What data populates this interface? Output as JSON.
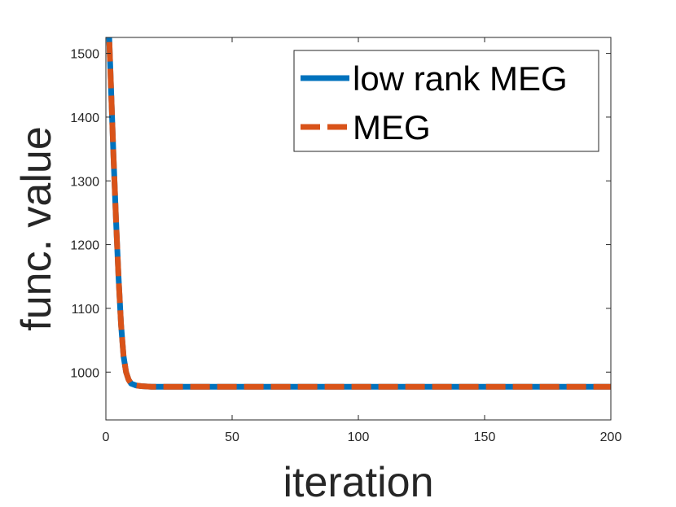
{
  "chart_data": {
    "type": "line",
    "title": "",
    "xlabel": "iteration",
    "ylabel": "func. value",
    "xlim": [
      0,
      200
    ],
    "ylim": [
      925,
      1525
    ],
    "xticks": [
      0,
      50,
      100,
      150,
      200
    ],
    "yticks": [
      1000,
      1100,
      1200,
      1300,
      1400,
      1500
    ],
    "grid": false,
    "legend_position": "top-right",
    "series": [
      {
        "name": "low rank MEG",
        "color": "#0072BD",
        "line_style": "solid",
        "x": [
          1,
          2,
          3,
          4,
          5,
          6,
          7,
          8,
          9,
          10,
          12,
          14,
          16,
          18,
          20,
          25,
          30,
          40,
          60,
          80,
          100,
          150,
          200
        ],
        "y": [
          1560,
          1450,
          1340,
          1240,
          1150,
          1075,
          1025,
          1000,
          988,
          982,
          979,
          978,
          977.5,
          977,
          977,
          977,
          977,
          977,
          977,
          977,
          977,
          977,
          977
        ]
      },
      {
        "name": "MEG",
        "color": "#D95319",
        "line_style": "dashed",
        "x": [
          1,
          2,
          3,
          4,
          5,
          6,
          7,
          8,
          9,
          10,
          12,
          14,
          16,
          18,
          20,
          25,
          30,
          40,
          60,
          80,
          100,
          150,
          200
        ],
        "y": [
          1560,
          1450,
          1340,
          1240,
          1150,
          1075,
          1025,
          1000,
          988,
          982,
          979,
          978,
          977.5,
          977,
          977,
          977,
          977,
          977,
          977,
          977,
          977,
          977,
          977
        ]
      }
    ]
  }
}
